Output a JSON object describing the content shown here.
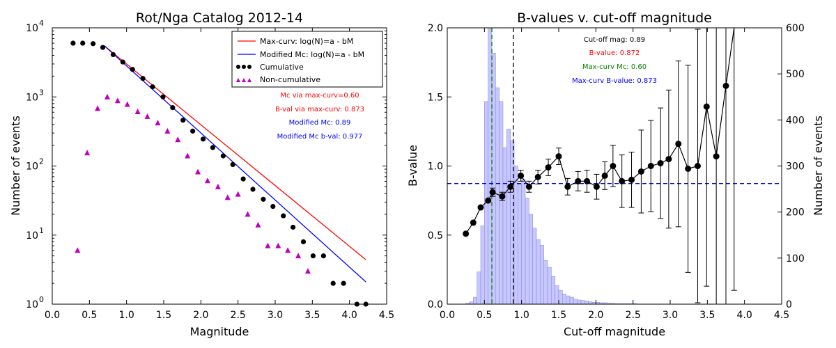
{
  "chart_data": [
    {
      "type": "scatter",
      "title": "Rot/Nga Catalog 2012-14",
      "xlabel": "Magnitude",
      "ylabel": "Number of events",
      "xlim": [
        0.0,
        4.5
      ],
      "ylim": [
        1,
        10000
      ],
      "yscale": "log",
      "xticks": [
        "0.0",
        "0.5",
        "1.0",
        "1.5",
        "2.0",
        "2.5",
        "3.0",
        "3.5",
        "4.0",
        "4.5"
      ],
      "yticks": [
        {
          "base": "10",
          "exp": "0"
        },
        {
          "base": "10",
          "exp": "1"
        },
        {
          "base": "10",
          "exp": "2"
        },
        {
          "base": "10",
          "exp": "3"
        },
        {
          "base": "10",
          "exp": "4"
        }
      ],
      "legend_position": "top-right",
      "series": [
        {
          "name": "Max-curv: log(N)=a - bM",
          "kind": "line",
          "color": "#ff0000",
          "x": [
            0.7,
            4.22
          ],
          "y": [
            5500,
            4.4
          ]
        },
        {
          "name": "Modified Mc: log(N)=a - bM",
          "kind": "line",
          "color": "#0000ff",
          "x": [
            0.7,
            4.22
          ],
          "y": [
            5500,
            2.1
          ]
        },
        {
          "name": "Cumulative",
          "kind": "circle",
          "color": "#000000",
          "x": [
            0.28,
            0.41,
            0.55,
            0.68,
            0.82,
            0.95,
            1.08,
            1.22,
            1.35,
            1.49,
            1.62,
            1.76,
            1.89,
            2.03,
            2.16,
            2.3,
            2.43,
            2.57,
            2.7,
            2.84,
            2.97,
            3.11,
            3.24,
            3.38,
            3.51,
            3.65,
            3.78,
            3.92,
            4.1,
            4.22
          ],
          "y": [
            6000,
            6000,
            5900,
            5200,
            4100,
            3200,
            2500,
            1850,
            1400,
            1000,
            700,
            460,
            320,
            245,
            185,
            140,
            105,
            65,
            46,
            33,
            26,
            19,
            13,
            8,
            5,
            5,
            2,
            2,
            1,
            1
          ]
        },
        {
          "name": "Non-cumulative",
          "kind": "triangle",
          "color": "#bf00bf",
          "x": [
            0.34,
            0.47,
            0.61,
            0.74,
            0.88,
            1.01,
            1.15,
            1.28,
            1.42,
            1.55,
            1.69,
            1.82,
            1.96,
            2.09,
            2.23,
            2.36,
            2.5,
            2.63,
            2.77,
            2.9,
            3.04,
            3.17,
            3.31,
            3.44
          ],
          "y": [
            6,
            155,
            680,
            1000,
            880,
            780,
            610,
            520,
            420,
            320,
            240,
            140,
            82,
            61,
            50,
            35,
            39,
            20,
            14,
            7,
            7,
            6,
            5,
            3
          ]
        }
      ],
      "annotations": [
        {
          "text": "Mc via max-curv=0.60",
          "color": "#ff0000"
        },
        {
          "text": "B-val via max-curv: 0.873",
          "color": "#ff0000"
        },
        {
          "text": "Modified Mc: 0.89",
          "color": "#0000ff"
        },
        {
          "text": "Modified Mc b-val: 0.977",
          "color": "#0000ff"
        }
      ]
    },
    {
      "type": "bar",
      "title": "B-values v. cut-off magnitude",
      "xlabel": "Cut-off magnitude",
      "ylabel": "B-value",
      "y2label": "Number of events",
      "xlim": [
        0.0,
        4.5
      ],
      "ylim": [
        0.0,
        2.0
      ],
      "y2lim": [
        0,
        600
      ],
      "xticks": [
        "0.0",
        "0.5",
        "1.0",
        "1.5",
        "2.0",
        "2.5",
        "3.0",
        "3.5",
        "4.0",
        "4.5"
      ],
      "yticks": [
        "0.0",
        "0.5",
        "1.0",
        "1.5",
        "2.0"
      ],
      "y2ticks": [
        "0",
        "100",
        "200",
        "300",
        "400",
        "500",
        "600"
      ],
      "histogram": {
        "name": "Number of events",
        "color": "#c7c7ff",
        "edge_color": "#8e8edb",
        "bin_width": 0.05,
        "bin_start": 0.25,
        "counts": [
          2,
          5,
          15,
          70,
          170,
          440,
          600,
          545,
          470,
          440,
          340,
          380,
          355,
          300,
          260,
          270,
          230,
          195,
          165,
          140,
          128,
          95,
          80,
          60,
          40,
          30,
          22,
          18,
          15,
          11,
          9,
          8,
          7,
          5,
          4,
          4,
          3,
          3,
          2,
          2,
          1,
          1,
          1,
          1,
          1,
          1
        ]
      },
      "bvalue_series": {
        "name": "B-value",
        "color": "#000000",
        "x": [
          0.25,
          0.35,
          0.45,
          0.55,
          0.61,
          0.74,
          0.85,
          0.99,
          1.1,
          1.22,
          1.36,
          1.5,
          1.62,
          1.76,
          1.88,
          2.01,
          2.12,
          2.23,
          2.35,
          2.48,
          2.61,
          2.74,
          2.87,
          2.98,
          3.11,
          3.24,
          3.37,
          3.49,
          3.62,
          3.75,
          3.86
        ],
        "y": [
          0.51,
          0.59,
          0.7,
          0.75,
          0.81,
          0.78,
          0.85,
          0.93,
          0.85,
          0.92,
          0.99,
          1.07,
          0.85,
          0.89,
          0.89,
          0.85,
          0.93,
          1.0,
          0.89,
          0.9,
          0.96,
          1.0,
          1.02,
          1.05,
          1.16,
          0.98,
          1.0,
          1.43,
          1.07,
          1.58,
          2.1
        ],
        "yerr": [
          0.01,
          0.01,
          0.02,
          0.02,
          0.03,
          0.03,
          0.04,
          0.04,
          0.04,
          0.05,
          0.06,
          0.06,
          0.06,
          0.07,
          0.08,
          0.09,
          0.1,
          0.15,
          0.19,
          0.2,
          0.3,
          0.33,
          0.4,
          0.5,
          0.6,
          0.75,
          0.99,
          1.3,
          1.5,
          1.8,
          2.0
        ]
      },
      "reference_lines": [
        {
          "orientation": "vertical",
          "x": 0.6,
          "color": "#008000",
          "style": "dashed"
        },
        {
          "orientation": "vertical",
          "x": 0.89,
          "color": "#000000",
          "style": "dashed"
        },
        {
          "orientation": "horizontal",
          "y": 0.873,
          "color": "#0000cc",
          "style": "dashed"
        }
      ],
      "annotations": [
        {
          "text": "Cut-off mag: 0.89",
          "color": "#000000"
        },
        {
          "text": "B-value: 0.872",
          "color": "#ff0000"
        },
        {
          "text": "Max-curv Mc: 0.60",
          "color": "#008000"
        },
        {
          "text": "Max-curv B-value: 0.873",
          "color": "#0000ff"
        }
      ]
    }
  ]
}
